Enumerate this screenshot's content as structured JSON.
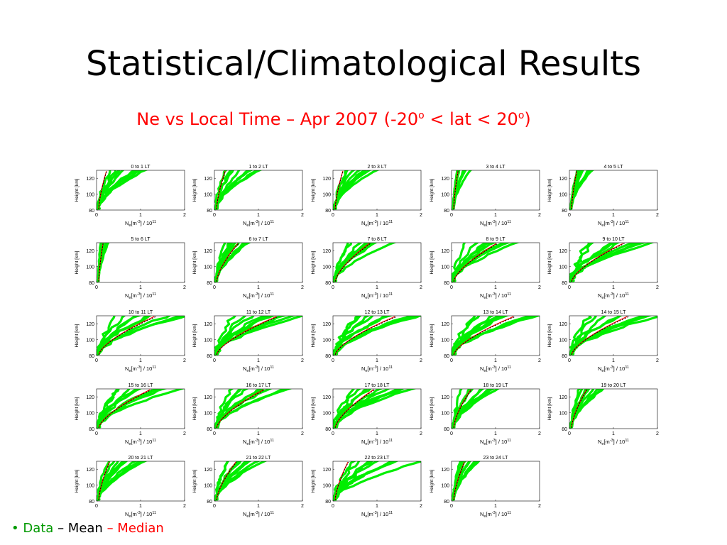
{
  "slide": {
    "title": "Statistical/Climatological Results",
    "subtitle_main": "Ne vs Local Time – Apr 2007 (-20",
    "subtitle_sup1": "o",
    "subtitle_mid": " < lat < 20",
    "subtitle_sup2": "o",
    "subtitle_end": ")"
  },
  "legend": {
    "bullet": "•",
    "data_label": "Data",
    "sep1": " – ",
    "mean_label": "Mean",
    "sep2": " – ",
    "median_label": "Median"
  },
  "colors": {
    "data": "#00ee00",
    "mean": "#000000",
    "median": "#ff0000",
    "title": "#000000",
    "subtitle": "#ff0000"
  },
  "chart_data": {
    "type": "line",
    "panel_count": 24,
    "xlabel": "Ne[m-3] / 10^11",
    "ylabel": "Height [km]",
    "xlim": [
      0,
      2
    ],
    "ylim": [
      80,
      130
    ],
    "xticks": [
      "0",
      "1",
      "2"
    ],
    "yticks": [
      "80",
      "100",
      "120"
    ],
    "series_names": [
      "Data",
      "Mean",
      "Median"
    ],
    "panels": [
      {
        "title": "0 to 1 LT",
        "spread": 1.2,
        "mean_top": 0.18
      },
      {
        "title": "1 to 2 LT",
        "spread": 1.1,
        "mean_top": 0.2
      },
      {
        "title": "2 to 3 LT",
        "spread": 1.0,
        "mean_top": 0.18
      },
      {
        "title": "3 to 4 LT",
        "spread": 0.4,
        "mean_top": 0.1
      },
      {
        "title": "4 to 5 LT",
        "spread": 0.5,
        "mean_top": 0.12
      },
      {
        "title": "5 to 6 LT",
        "spread": 0.25,
        "mean_top": 0.1
      },
      {
        "title": "6 to 7 LT",
        "spread": 0.8,
        "mean_top": 0.5
      },
      {
        "title": "7 to 8 LT",
        "spread": 1.2,
        "mean_top": 0.8
      },
      {
        "title": "8 to 9 LT",
        "spread": 1.5,
        "mean_top": 1.0
      },
      {
        "title": "9 to 10 LT",
        "spread": 2.0,
        "mean_top": 1.2
      },
      {
        "title": "10 to 11 LT",
        "spread": 2.0,
        "mean_top": 1.3
      },
      {
        "title": "11 to 12 LT",
        "spread": 2.0,
        "mean_top": 1.4
      },
      {
        "title": "12 to 13 LT",
        "spread": 2.0,
        "mean_top": 1.4
      },
      {
        "title": "13 to 14 LT",
        "spread": 2.0,
        "mean_top": 1.4
      },
      {
        "title": "14 to 15 LT",
        "spread": 2.0,
        "mean_top": 1.3
      },
      {
        "title": "15 to 16 LT",
        "spread": 1.8,
        "mean_top": 1.2
      },
      {
        "title": "16 to 17 LT",
        "spread": 1.6,
        "mean_top": 1.1
      },
      {
        "title": "17 to 18 LT",
        "spread": 1.8,
        "mean_top": 0.9
      },
      {
        "title": "18 to 19 LT",
        "spread": 1.0,
        "mean_top": 0.4
      },
      {
        "title": "19 to 20 LT",
        "spread": 0.9,
        "mean_top": 0.35
      },
      {
        "title": "20 to 21 LT",
        "spread": 1.0,
        "mean_top": 0.25
      },
      {
        "title": "21 to 22 LT",
        "spread": 1.1,
        "mean_top": 0.45
      },
      {
        "title": "22 to 23 LT",
        "spread": 1.9,
        "mean_top": 0.3
      },
      {
        "title": "23 to 24 LT",
        "spread": 0.7,
        "mean_top": 0.25
      }
    ]
  }
}
